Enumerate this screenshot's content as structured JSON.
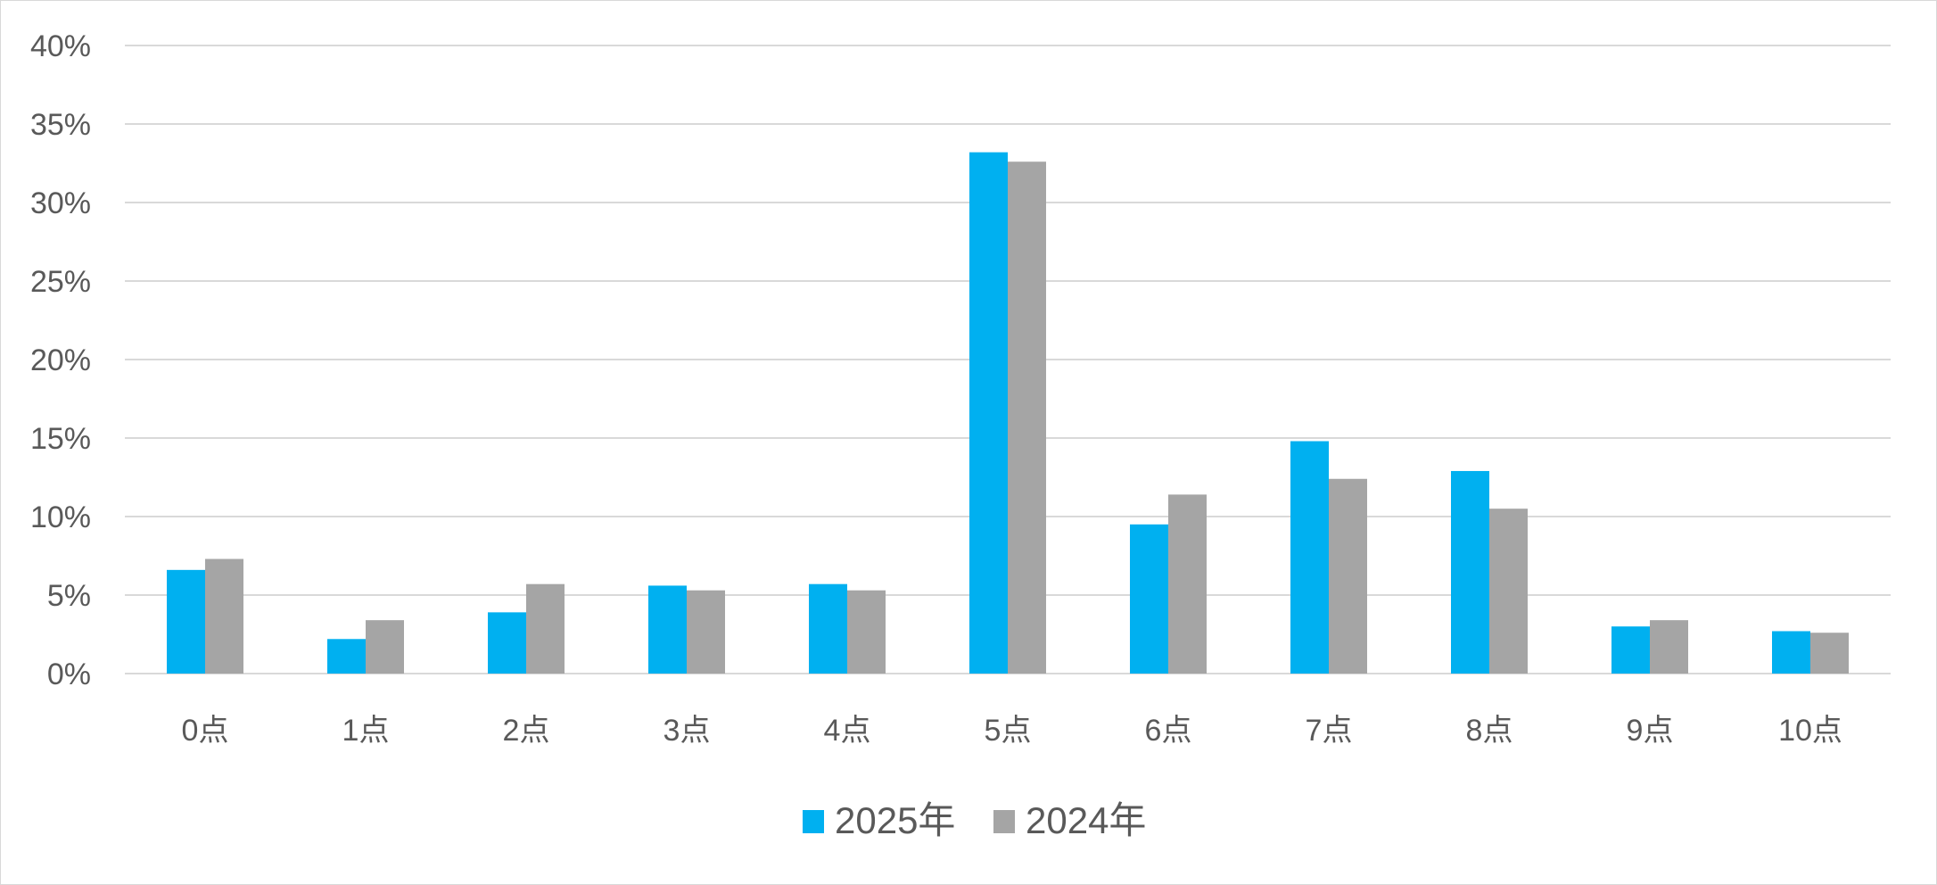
{
  "chart_data": {
    "type": "bar",
    "categories": [
      "0点",
      "1点",
      "2点",
      "3点",
      "4点",
      "5点",
      "6点",
      "7点",
      "8点",
      "9点",
      "10点"
    ],
    "series": [
      {
        "name": "2025年",
        "color": "#00B0F0",
        "values": [
          6.6,
          2.2,
          3.9,
          5.6,
          5.7,
          33.2,
          9.5,
          14.8,
          12.9,
          3.0,
          2.7
        ]
      },
      {
        "name": "2024年",
        "color": "#A5A5A5",
        "values": [
          7.3,
          3.4,
          5.7,
          5.3,
          5.3,
          32.6,
          11.4,
          12.4,
          10.5,
          3.4,
          2.6
        ]
      }
    ],
    "y_unit": "%",
    "ylim": [
      0,
      40
    ],
    "yticks": [
      "0%",
      "5%",
      "10%",
      "15%",
      "20%",
      "25%",
      "30%",
      "35%",
      "40%"
    ],
    "grid": true,
    "legend_position": "bottom",
    "title": "",
    "xlabel": "",
    "ylabel": ""
  }
}
